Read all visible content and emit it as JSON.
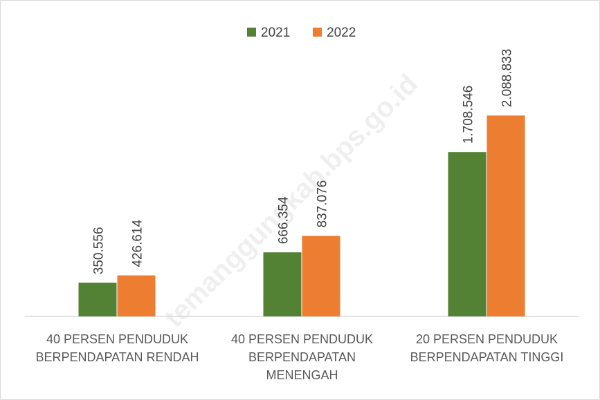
{
  "chart_data": {
    "type": "bar",
    "categories": [
      "40 PERSEN PENDUDUK BERPENDAPATAN RENDAH",
      "40 PERSEN PENDUDUK BERPENDAPATAN MENENGAH",
      "20 PERSEN PENDUDUK BERPENDAPATAN TINGGI"
    ],
    "series": [
      {
        "name": "2021",
        "color": "#548235",
        "values": [
          350556,
          666354,
          1708546
        ],
        "value_labels": [
          "350.556",
          "666.354",
          "1.708.546"
        ]
      },
      {
        "name": "2022",
        "color": "#ed7d31",
        "values": [
          426614,
          837076,
          2088833
        ],
        "value_labels": [
          "426.614",
          "837.076",
          "2.088.833"
        ]
      }
    ],
    "ylim": [
      0,
      2500000
    ],
    "legend": "top",
    "watermark": "temanggungkab.bps.go.id"
  }
}
